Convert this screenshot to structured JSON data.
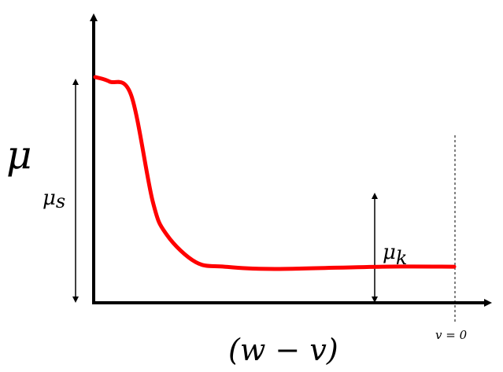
{
  "chart_data": {
    "type": "line",
    "title": "",
    "series": [
      {
        "x": [
          0,
          0.04,
          0.1,
          0.16,
          0.2,
          0.28,
          0.36,
          0.5,
          0.8,
          1.0
        ],
        "y": [
          1.0,
          0.98,
          0.92,
          0.45,
          0.3,
          0.18,
          0.16,
          0.15,
          0.16,
          0.16
        ]
      }
    ],
    "color": "#ff0000"
  },
  "labels": {
    "y_axis": "μ",
    "mu_s_main": "μ",
    "mu_s_sub": "s",
    "mu_k_main": "μ",
    "mu_k_sub": "k",
    "x_axis": "(w − v)",
    "v_zero": "v = 0"
  }
}
